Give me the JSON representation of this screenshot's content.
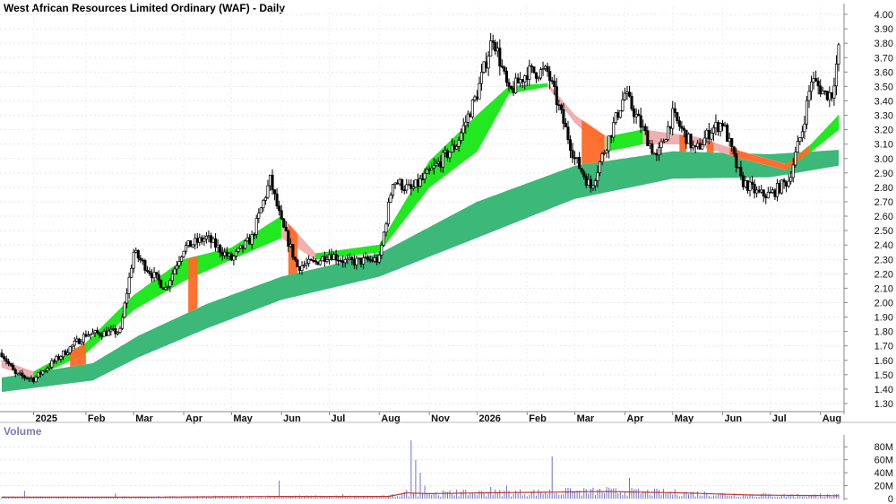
{
  "chart_data": [
    {
      "type": "candlestick",
      "title": "West African Resources Limited Ordinary (WAF) - Daily",
      "y_ticks": [
        "4.00",
        "3.90",
        "3.80",
        "3.70",
        "3.60",
        "3.50",
        "3.40",
        "3.30",
        "3.20",
        "3.10",
        "3.00",
        "2.90",
        "2.80",
        "2.70",
        "2.60",
        "2.50",
        "2.40",
        "2.30",
        "2.20",
        "2.10",
        "2.00",
        "1.90",
        "1.80",
        "1.70",
        "1.60",
        "1.50",
        "1.40",
        "1.30"
      ],
      "ylim": [
        1.25,
        4.05
      ],
      "x_ticks": [
        "2025",
        "Feb",
        "Mar",
        "Apr",
        "May",
        "Jun",
        "Jul",
        "Aug",
        "Nov",
        "2026",
        "Feb",
        "Mar",
        "Apr",
        "May",
        "Jun",
        "Jul",
        "Aug"
      ],
      "x_tick_index": [
        14,
        37,
        58,
        80,
        101,
        123,
        144,
        166,
        188,
        209,
        231,
        252,
        274,
        295,
        317,
        338,
        360
      ],
      "colors": {
        "long_band": "#3cb878",
        "short_band_up": "#22e822",
        "short_band_down": "#f0b0b0",
        "below_band": "#ff6a28",
        "candle": "#000000"
      },
      "price_keys": [
        [
          0,
          1.65
        ],
        [
          6,
          1.5
        ],
        [
          14,
          1.47
        ],
        [
          22,
          1.58
        ],
        [
          37,
          1.78
        ],
        [
          52,
          1.8
        ],
        [
          58,
          2.35
        ],
        [
          66,
          2.2
        ],
        [
          72,
          2.1
        ],
        [
          80,
          2.38
        ],
        [
          90,
          2.45
        ],
        [
          101,
          2.3
        ],
        [
          110,
          2.45
        ],
        [
          118,
          2.85
        ],
        [
          123,
          2.55
        ],
        [
          130,
          2.25
        ],
        [
          138,
          2.28
        ],
        [
          144,
          2.34
        ],
        [
          152,
          2.28
        ],
        [
          166,
          2.3
        ],
        [
          172,
          2.85
        ],
        [
          180,
          2.78
        ],
        [
          188,
          2.9
        ],
        [
          200,
          3.1
        ],
        [
          209,
          3.45
        ],
        [
          216,
          3.85
        ],
        [
          223,
          3.45
        ],
        [
          231,
          3.6
        ],
        [
          240,
          3.6
        ],
        [
          248,
          3.2
        ],
        [
          252,
          3.0
        ],
        [
          259,
          2.8
        ],
        [
          266,
          3.1
        ],
        [
          274,
          3.45
        ],
        [
          282,
          3.2
        ],
        [
          288,
          3.0
        ],
        [
          295,
          3.3
        ],
        [
          305,
          3.05
        ],
        [
          312,
          3.2
        ],
        [
          317,
          3.25
        ],
        [
          325,
          2.85
        ],
        [
          333,
          2.75
        ],
        [
          338,
          2.75
        ],
        [
          346,
          2.85
        ],
        [
          352,
          3.2
        ],
        [
          356,
          3.55
        ],
        [
          362,
          3.45
        ],
        [
          365,
          3.45
        ],
        [
          368,
          3.75
        ]
      ],
      "long_band_keys": [
        [
          0,
          1.38,
          1.48
        ],
        [
          40,
          1.46,
          1.58
        ],
        [
          60,
          1.62,
          1.77
        ],
        [
          90,
          1.82,
          1.99
        ],
        [
          123,
          2.02,
          2.18
        ],
        [
          166,
          2.18,
          2.34
        ],
        [
          209,
          2.45,
          2.7
        ],
        [
          252,
          2.72,
          2.95
        ],
        [
          295,
          2.86,
          3.05
        ],
        [
          338,
          2.87,
          3.03
        ],
        [
          368,
          2.95,
          3.06
        ]
      ],
      "short_band_keys": [
        [
          0,
          1.55,
          1.6
        ],
        [
          14,
          1.48,
          1.52
        ],
        [
          37,
          1.65,
          1.72
        ],
        [
          58,
          1.95,
          2.05
        ],
        [
          80,
          2.15,
          2.3
        ],
        [
          101,
          2.3,
          2.38
        ],
        [
          123,
          2.45,
          2.6
        ],
        [
          138,
          2.3,
          2.34
        ],
        [
          166,
          2.35,
          2.4
        ],
        [
          188,
          2.8,
          2.98
        ],
        [
          209,
          3.05,
          3.3
        ],
        [
          223,
          3.45,
          3.5
        ],
        [
          240,
          3.5,
          3.52
        ],
        [
          252,
          3.25,
          3.3
        ],
        [
          266,
          3.05,
          3.15
        ],
        [
          282,
          3.1,
          3.2
        ],
        [
          305,
          3.1,
          3.15
        ],
        [
          325,
          3.0,
          3.05
        ],
        [
          345,
          2.92,
          2.96
        ],
        [
          356,
          3.05,
          3.1
        ],
        [
          368,
          3.2,
          3.3
        ]
      ],
      "below_ranges": [
        [
          30,
          37
        ],
        [
          82,
          86
        ],
        [
          126,
          130
        ],
        [
          255,
          265
        ],
        [
          298,
          301
        ],
        [
          310,
          313
        ],
        [
          320,
          355
        ]
      ]
    },
    {
      "type": "bar",
      "title": "Volume",
      "y_ticks": [
        "80M",
        "60M",
        "40M",
        "20M",
        "0"
      ],
      "ylim": [
        0,
        90
      ],
      "average_line_color": "#c0392b",
      "bar_color": "#7070c8",
      "volume_keys": [
        [
          0,
          2
        ],
        [
          60,
          2
        ],
        [
          120,
          3
        ],
        [
          170,
          3
        ],
        [
          178,
          8
        ],
        [
          188,
          7
        ],
        [
          209,
          8
        ],
        [
          240,
          9
        ],
        [
          265,
          10
        ],
        [
          300,
          8
        ],
        [
          330,
          5
        ],
        [
          368,
          4
        ]
      ],
      "spikes": [
        [
          10,
          12
        ],
        [
          50,
          8
        ],
        [
          122,
          28
        ],
        [
          150,
          7
        ],
        [
          180,
          90
        ],
        [
          182,
          60
        ],
        [
          184,
          40
        ],
        [
          186,
          20
        ],
        [
          200,
          14
        ],
        [
          215,
          18
        ],
        [
          222,
          20
        ],
        [
          236,
          14
        ],
        [
          242,
          65
        ],
        [
          250,
          16
        ],
        [
          266,
          18
        ],
        [
          276,
          32
        ],
        [
          300,
          10
        ],
        [
          335,
          9
        ],
        [
          360,
          8
        ]
      ]
    }
  ]
}
